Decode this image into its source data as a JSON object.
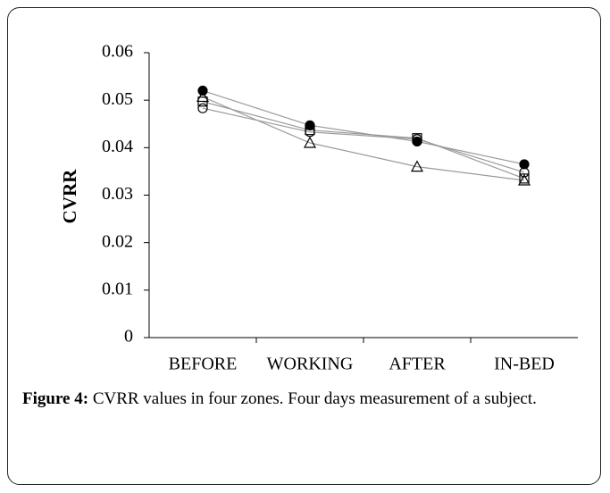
{
  "chart_data": {
    "type": "line",
    "ylabel": "CVRR",
    "categories": [
      "BEFORE",
      "WORKING",
      "AFTER",
      "IN-BED"
    ],
    "series": [
      {
        "marker": "filled-circle",
        "color": "#000000",
        "values": [
          0.052,
          0.0447,
          0.0413,
          0.0365
        ]
      },
      {
        "marker": "open-square",
        "color": "#000000",
        "values": [
          0.0497,
          0.0437,
          0.042,
          0.0335
        ]
      },
      {
        "marker": "open-circle",
        "color": "#000000",
        "values": [
          0.0483,
          0.0433,
          0.0418,
          0.0348
        ]
      },
      {
        "marker": "open-triangle",
        "color": "#000000",
        "values": [
          0.0507,
          0.041,
          0.036,
          0.0331
        ]
      }
    ],
    "line_color": "#9a9a9a",
    "ylim": [
      0,
      0.06
    ],
    "yticks": [
      0,
      0.01,
      0.02,
      0.03,
      0.04,
      0.05,
      0.06
    ],
    "grid": false
  },
  "caption": {
    "label": "Figure 4:",
    "text": "CVRR values in four zones. Four days measurement of a subject."
  }
}
